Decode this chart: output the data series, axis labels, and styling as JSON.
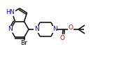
{
  "bg_color": "#ffffff",
  "bond_color": "#000000",
  "atom_colors": {
    "N": "#0000cd",
    "Br": "#000000",
    "O": "#cc0000",
    "C": "#000000"
  },
  "lw": 1.1
}
